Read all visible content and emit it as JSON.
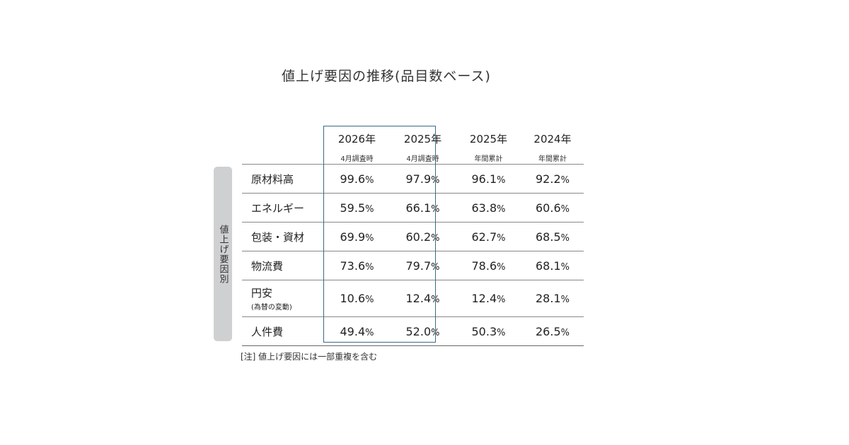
{
  "chart_data": {
    "type": "table",
    "title": "値上げ要因の推移(品目数ベース)",
    "row_group_label": "値上げ要因別",
    "columns": [
      {
        "year": "2026年",
        "sub": "4月調査時"
      },
      {
        "year": "2025年",
        "sub": "4月調査時"
      },
      {
        "year": "2025年",
        "sub": "年間累計"
      },
      {
        "year": "2024年",
        "sub": "年間累計"
      }
    ],
    "highlighted_columns": [
      0,
      1
    ],
    "highlight_color": "#3b6a86",
    "unit": "%",
    "rows": [
      {
        "label": "原材料高",
        "sub": "",
        "values": [
          "99.6",
          "97.9",
          "96.1",
          "92.2"
        ]
      },
      {
        "label": "エネルギー",
        "sub": "",
        "values": [
          "59.5",
          "66.1",
          "63.8",
          "60.6"
        ]
      },
      {
        "label": "包装・資材",
        "sub": "",
        "values": [
          "69.9",
          "60.2",
          "62.7",
          "68.5"
        ]
      },
      {
        "label": "物流費",
        "sub": "",
        "values": [
          "73.6",
          "79.7",
          "78.6",
          "68.1"
        ]
      },
      {
        "label": "円安",
        "sub": "(為替の変動)",
        "values": [
          "10.6",
          "12.4",
          "12.4",
          "28.1"
        ]
      },
      {
        "label": "人件費",
        "sub": "",
        "values": [
          "49.4",
          "52.0",
          "50.3",
          "26.5"
        ]
      }
    ],
    "note": "[注] 値上げ要因には一部重複を含む"
  }
}
